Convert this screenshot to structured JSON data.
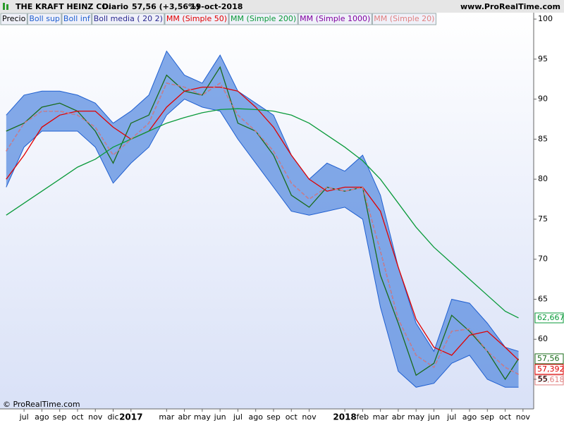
{
  "chart_data": {
    "type": "line",
    "title": "THE KRAFT HEINZ CO.",
    "period": "Diario",
    "quote": "57,56 (+3,56%)",
    "date": "19-oct-2018",
    "source": "www.ProRealTime.com",
    "copyright": "© ProRealTime.com",
    "x": [
      -1,
      0,
      1,
      2,
      3,
      4,
      5,
      6,
      7,
      8,
      9,
      10,
      11,
      12,
      13,
      14,
      15,
      16,
      17,
      18,
      19,
      20,
      21,
      22,
      23,
      24,
      25,
      26,
      27,
      27.75
    ],
    "xlim": [
      -1.35,
      28.6
    ],
    "xticks": [
      {
        "value": 0,
        "label": "jul"
      },
      {
        "value": 1,
        "label": "ago"
      },
      {
        "value": 2,
        "label": "sep"
      },
      {
        "value": 3,
        "label": "oct"
      },
      {
        "value": 4,
        "label": "nov"
      },
      {
        "value": 5,
        "label": "dic"
      },
      {
        "value": 6,
        "label": "2017"
      },
      {
        "value": 8,
        "label": "mar"
      },
      {
        "value": 9,
        "label": "abr"
      },
      {
        "value": 10,
        "label": "may"
      },
      {
        "value": 11,
        "label": "jun"
      },
      {
        "value": 12,
        "label": "jul"
      },
      {
        "value": 13,
        "label": "ago"
      },
      {
        "value": 14,
        "label": "sep"
      },
      {
        "value": 15,
        "label": "oct"
      },
      {
        "value": 16,
        "label": "nov"
      },
      {
        "value": 18,
        "label": "2018"
      },
      {
        "value": 19,
        "label": "feb"
      },
      {
        "value": 20,
        "label": "mar"
      },
      {
        "value": 21,
        "label": "abr"
      },
      {
        "value": 22,
        "label": "may"
      },
      {
        "value": 23,
        "label": "jun"
      },
      {
        "value": 24,
        "label": "jul"
      },
      {
        "value": 25,
        "label": "ago"
      },
      {
        "value": 26,
        "label": "sep"
      },
      {
        "value": 27,
        "label": "oct"
      },
      {
        "value": 28,
        "label": "nov"
      }
    ],
    "ylim": [
      51.3,
      100.8
    ],
    "yticks": [
      55,
      60,
      65,
      70,
      75,
      80,
      85,
      90,
      95,
      100
    ],
    "grid": false,
    "band": [
      "Boll sup",
      "Boll inf"
    ],
    "series": [
      {
        "name": "Precio",
        "color": "#1a6b1a",
        "values": [
          86,
          87,
          89,
          89.5,
          88.5,
          86,
          82,
          87,
          88,
          93,
          91,
          90.5,
          94,
          87,
          86,
          83,
          78,
          76.5,
          79,
          78.5,
          79,
          68,
          62,
          55.5,
          57,
          63,
          61,
          58.5,
          55,
          57.56
        ],
        "last_label": "57,56"
      },
      {
        "name": "Boll sup",
        "color": "#1f5fd0",
        "values": [
          88,
          90.5,
          91,
          91,
          90.5,
          89.5,
          87,
          88.5,
          90.5,
          96,
          93,
          92,
          95.5,
          91,
          89.5,
          88,
          83,
          80,
          82,
          81,
          83,
          78,
          69,
          62,
          58.5,
          65,
          64.5,
          62,
          59,
          58.5
        ]
      },
      {
        "name": "Boll inf",
        "color": "#1f5fd0",
        "values": [
          79,
          84,
          86,
          86,
          86,
          84,
          79.5,
          82,
          84,
          88,
          90,
          89,
          88.5,
          85,
          82,
          79,
          76,
          75.5,
          76,
          76.5,
          75,
          64,
          56,
          54,
          54.5,
          57,
          58,
          55,
          54,
          54
        ]
      },
      {
        "name": "Boll media ( 20 2)",
        "color": "#2a2a90",
        "dashed": true,
        "values": [
          83.5,
          87,
          88.5,
          88.5,
          88,
          86.5,
          83,
          85,
          87,
          92,
          91.5,
          90.5,
          92,
          88,
          86,
          83.5,
          79.5,
          77.5,
          79,
          78.5,
          79,
          71,
          62.5,
          58,
          56.5,
          61,
          61.3,
          58.5,
          56.5,
          55.618
        ]
      },
      {
        "name": "MM (Simple 50)",
        "color": "#e00000",
        "values": [
          80,
          83,
          86.5,
          88,
          88.5,
          88.5,
          86.5,
          85,
          86,
          89,
          91,
          91.5,
          91.5,
          91,
          89,
          86.5,
          83,
          80,
          78.5,
          79,
          79,
          76,
          69,
          62.5,
          59,
          58,
          60.5,
          61,
          59,
          57.392
        ],
        "last_label": "57,392"
      },
      {
        "name": "MM (Simple 200)",
        "color": "#0a9a3a",
        "values": [
          75.5,
          77,
          78.5,
          80,
          81.5,
          82.5,
          84,
          85,
          86,
          87,
          87.7,
          88.3,
          88.7,
          88.8,
          88.7,
          88.5,
          88,
          87,
          85.5,
          84,
          82.3,
          80,
          77,
          74,
          71.5,
          69.5,
          67.5,
          65.5,
          63.5,
          62.667
        ],
        "last_label": "62,667"
      },
      {
        "name": "MM (Simple 1000)",
        "color": "#8000a0",
        "values": [
          null,
          null,
          null,
          null,
          null,
          null,
          null,
          null,
          null,
          null,
          null,
          null,
          null,
          null,
          null,
          null,
          null,
          null,
          null,
          null,
          null,
          null,
          null,
          null,
          null,
          null,
          null,
          null,
          null,
          null
        ]
      },
      {
        "name": "MM (Simple 20)",
        "color": "#e08080",
        "dashed": true,
        "values": [
          83.5,
          87,
          88.5,
          88.5,
          88,
          86.5,
          83,
          85,
          87,
          92,
          91.5,
          90.5,
          92,
          88,
          86,
          83.5,
          79.5,
          77.5,
          79,
          78.5,
          79,
          71,
          62.5,
          58,
          56.5,
          61,
          61.3,
          58.5,
          56.5,
          55.618
        ],
        "last_label": "55,618"
      }
    ]
  }
}
